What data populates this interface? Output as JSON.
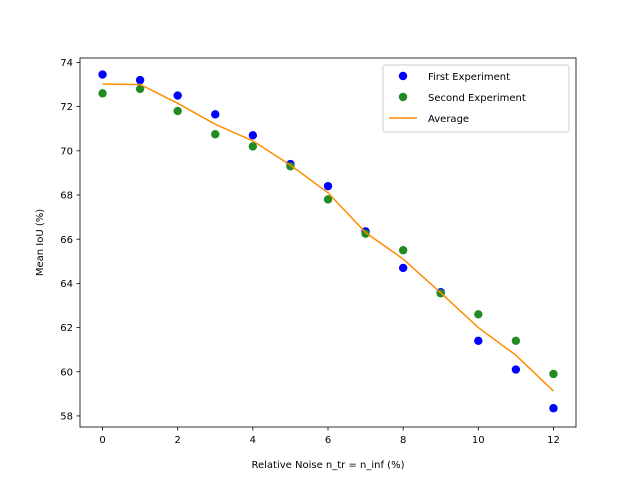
{
  "chart_data": {
    "type": "scatter",
    "xlabel": "Relative Noise n_tr = n_inf (%)",
    "ylabel": "Mean IoU (%)",
    "xlim": [
      -0.6,
      12.6
    ],
    "ylim": [
      57.5,
      74.2
    ],
    "xticks": [
      0,
      2,
      4,
      6,
      8,
      10,
      12
    ],
    "yticks": [
      58,
      60,
      62,
      64,
      66,
      68,
      70,
      72,
      74
    ],
    "grid": false,
    "legend_position": "top-right",
    "x": [
      0,
      1,
      2,
      3,
      4,
      5,
      6,
      7,
      8,
      9,
      10,
      11,
      12
    ],
    "series": [
      {
        "name": "First Experiment",
        "kind": "scatter",
        "color": "#0000ff",
        "values": [
          73.45,
          73.2,
          72.5,
          71.65,
          70.7,
          69.4,
          68.4,
          66.35,
          64.7,
          63.6,
          61.4,
          60.1,
          58.35
        ]
      },
      {
        "name": "Second Experiment",
        "kind": "scatter",
        "color": "#228b22",
        "values": [
          72.6,
          72.8,
          71.8,
          70.75,
          70.2,
          69.3,
          67.8,
          66.25,
          65.5,
          63.55,
          62.6,
          61.4,
          59.9
        ]
      },
      {
        "name": "Average",
        "kind": "line",
        "color": "#ff8c00",
        "values": [
          73.025,
          73.0,
          72.15,
          71.2,
          70.45,
          69.35,
          68.1,
          66.3,
          65.1,
          63.575,
          62.0,
          60.75,
          59.125
        ]
      }
    ]
  }
}
